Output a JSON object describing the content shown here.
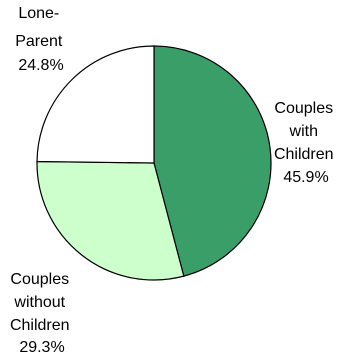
{
  "chart_data": {
    "type": "pie",
    "title": "",
    "slices": [
      {
        "name_lines": [
          "Couples",
          "with",
          "Children"
        ],
        "value": 45.9,
        "value_label": "45.9%",
        "color": "#3a9e68"
      },
      {
        "name_lines": [
          "Couples",
          "without",
          "Children"
        ],
        "value": 29.3,
        "value_label": "29.3%",
        "color": "#ccffcc"
      },
      {
        "name_lines": [
          "Lone-",
          "Parent"
        ],
        "value": 24.8,
        "value_label": "24.8%",
        "color": "#ffffff"
      }
    ],
    "start_angle_deg": 0,
    "direction": "clockwise",
    "legend": "none"
  }
}
